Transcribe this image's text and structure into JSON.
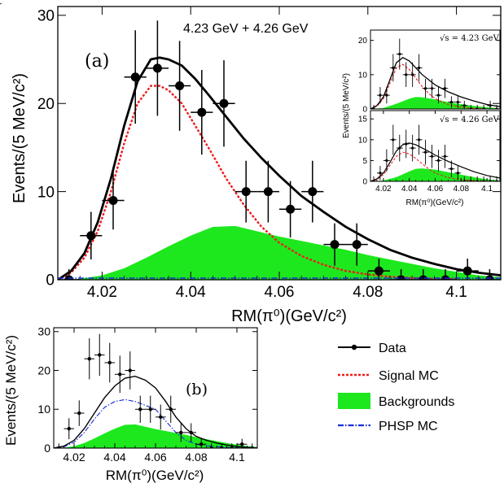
{
  "chart_data": [
    {
      "type": "scatter",
      "panel_label": "(a)",
      "annotation": "4.23 GeV + 4.26 GeV",
      "xlabel": "RM(π⁰)(GeV/c²)",
      "ylabel": "Events/(5 MeV/c²)",
      "xlim": [
        4.01,
        4.11
      ],
      "ylim": [
        0,
        31
      ],
      "xticks": [
        "4.02",
        "4.04",
        "4.06",
        "4.08",
        "4.1"
      ],
      "yticks": [
        "0",
        "10",
        "20",
        "30"
      ],
      "data": {
        "x": [
          4.0125,
          4.0175,
          4.0225,
          4.0275,
          4.0325,
          4.0375,
          4.0425,
          4.0475,
          4.0525,
          4.0575,
          4.0625,
          4.0675,
          4.0725,
          4.0775,
          4.0825,
          4.0875,
          4.0925,
          4.0975,
          4.1025,
          4.1075
        ],
        "y": [
          0,
          5,
          9,
          23,
          24,
          22,
          19,
          20,
          10,
          10,
          8,
          10,
          4,
          4,
          1,
          0,
          0,
          0,
          1,
          0
        ],
        "yerr": [
          1.2,
          2.7,
          3.3,
          5.3,
          5.4,
          5.1,
          4.8,
          4.9,
          3.5,
          3.5,
          3.2,
          3.5,
          2.4,
          2.4,
          1.4,
          1.2,
          1.2,
          1.2,
          1.4,
          1.2
        ]
      },
      "total_fit": {
        "x": [
          4.01,
          4.013,
          4.016,
          4.019,
          4.022,
          4.025,
          4.028,
          4.031,
          4.033,
          4.035,
          4.038,
          4.041,
          4.044,
          4.048,
          4.052,
          4.056,
          4.06,
          4.065,
          4.07,
          4.075,
          4.08,
          4.085,
          4.09,
          4.095,
          4.1,
          4.105,
          4.11
        ],
        "y": [
          0,
          1.0,
          3.0,
          6.5,
          11.5,
          17.5,
          22.5,
          25.0,
          25.2,
          25.0,
          24.3,
          22.8,
          21.0,
          18.5,
          16.0,
          13.8,
          11.8,
          9.5,
          7.7,
          6.0,
          4.6,
          3.4,
          2.5,
          1.8,
          1.2,
          0.8,
          0.5
        ]
      },
      "signal_mc": {
        "x": [
          4.01,
          4.013,
          4.016,
          4.019,
          4.022,
          4.025,
          4.028,
          4.031,
          4.033,
          4.035,
          4.038,
          4.041,
          4.044,
          4.048,
          4.052,
          4.056,
          4.06,
          4.065,
          4.07,
          4.075,
          4.08,
          4.085,
          4.09,
          4.095,
          4.1
        ],
        "y": [
          0,
          0.8,
          2.5,
          5.5,
          10.0,
          15.5,
          20.0,
          22.0,
          22.0,
          21.5,
          20.0,
          17.5,
          15.0,
          11.5,
          8.5,
          6.0,
          4.2,
          2.7,
          1.7,
          1.0,
          0.6,
          0.35,
          0.2,
          0.1,
          0.05
        ]
      },
      "backgrounds": {
        "x": [
          4.01,
          4.015,
          4.02,
          4.025,
          4.03,
          4.035,
          4.04,
          4.045,
          4.05,
          4.055,
          4.06,
          4.065,
          4.07,
          4.075,
          4.08,
          4.085,
          4.09,
          4.095,
          4.1,
          4.105,
          4.11
        ],
        "y": [
          0,
          0.1,
          0.5,
          1.3,
          2.5,
          3.8,
          5.0,
          6.0,
          6.1,
          5.5,
          4.9,
          4.4,
          3.9,
          3.4,
          2.8,
          2.3,
          1.8,
          1.3,
          0.9,
          0.5,
          0.3
        ]
      }
    },
    {
      "type": "scatter",
      "panel_label": "(b)",
      "xlabel": "RM(π⁰)(GeV/c²)",
      "ylabel": "Events/(5 MeV/c²)",
      "xlim": [
        4.01,
        4.11
      ],
      "ylim": [
        0,
        31
      ],
      "xticks": [
        "4.02",
        "4.04",
        "4.06",
        "4.08",
        "4.1"
      ],
      "yticks": [
        "0",
        "10",
        "20",
        "30"
      ],
      "data": {
        "x": [
          4.0125,
          4.0175,
          4.0225,
          4.0275,
          4.0325,
          4.0375,
          4.0425,
          4.0475,
          4.0525,
          4.0575,
          4.0625,
          4.0675,
          4.0725,
          4.0775,
          4.0825,
          4.0875,
          4.0925,
          4.0975,
          4.1025,
          4.1075
        ],
        "y": [
          0,
          5,
          9,
          23,
          24,
          22,
          19,
          20,
          10,
          10,
          8,
          10,
          4,
          4,
          1,
          0,
          0,
          0,
          1,
          0
        ],
        "yerr": [
          1.2,
          2.7,
          3.3,
          5.3,
          5.4,
          5.1,
          4.8,
          4.9,
          3.5,
          3.5,
          3.2,
          3.5,
          2.4,
          2.4,
          1.4,
          1.2,
          1.2,
          1.2,
          1.4,
          1.2
        ]
      },
      "total_fit": {
        "x": [
          4.01,
          4.015,
          4.02,
          4.025,
          4.03,
          4.035,
          4.04,
          4.045,
          4.05,
          4.055,
          4.06,
          4.065,
          4.07,
          4.075,
          4.08,
          4.085,
          4.09,
          4.095,
          4.1,
          4.105,
          4.11
        ],
        "y": [
          0,
          0.5,
          2.0,
          5.0,
          9.0,
          13.0,
          16.0,
          18.0,
          18.5,
          17.5,
          15.5,
          12.0,
          8.0,
          5.0,
          3.0,
          2.0,
          1.3,
          0.8,
          0.4,
          0.2,
          0
        ]
      },
      "phsp_mc": {
        "x": [
          4.01,
          4.015,
          4.02,
          4.025,
          4.03,
          4.035,
          4.04,
          4.045,
          4.05,
          4.055,
          4.06,
          4.065,
          4.07,
          4.075,
          4.08,
          4.085,
          4.09,
          4.095,
          4.1,
          4.105,
          4.11
        ],
        "y": [
          0,
          0.3,
          1.5,
          4.0,
          7.5,
          10.5,
          12.0,
          12.5,
          12.0,
          11.0,
          10.0,
          7.0,
          4.0,
          2.0,
          1.0,
          0.6,
          0.4,
          0.2,
          0.1,
          0,
          0
        ]
      },
      "backgrounds": {
        "x": [
          4.01,
          4.015,
          4.02,
          4.025,
          4.03,
          4.035,
          4.04,
          4.045,
          4.05,
          4.055,
          4.06,
          4.065,
          4.07,
          4.075,
          4.08,
          4.085,
          4.09,
          4.095,
          4.1,
          4.105,
          4.11
        ],
        "y": [
          0,
          0.1,
          0.5,
          1.3,
          2.5,
          3.8,
          5.0,
          6.0,
          6.1,
          5.5,
          4.9,
          4.4,
          3.9,
          3.4,
          2.8,
          2.3,
          1.8,
          1.3,
          0.9,
          0.5,
          0.3
        ]
      }
    },
    {
      "type": "scatter",
      "panel_label": "√s = 4.23 GeV",
      "ylabel": "Events/(5 MeV/c²)",
      "xlim": [
        4.01,
        4.11
      ],
      "ylim": [
        0,
        23
      ],
      "yticks": [
        "0",
        "10",
        "20"
      ],
      "data": {
        "x": [
          4.0125,
          4.0175,
          4.0225,
          4.0275,
          4.0325,
          4.0375,
          4.0425,
          4.0475,
          4.0525,
          4.0575,
          4.0625,
          4.0675,
          4.0725,
          4.0775,
          4.0825,
          4.0875,
          4.0925,
          4.0975,
          4.1025,
          4.1075
        ],
        "y": [
          0,
          4,
          4,
          12,
          16,
          10,
          10,
          12,
          6,
          6,
          4,
          6,
          2,
          2,
          1,
          0,
          0,
          0,
          1,
          0
        ],
        "yerr": [
          1.2,
          2.4,
          2.4,
          4.0,
          4.5,
          3.6,
          3.6,
          4.0,
          2.8,
          2.8,
          2.4,
          2.8,
          1.7,
          1.7,
          1.4,
          1.2,
          1.2,
          1.2,
          1.4,
          1.2
        ]
      },
      "total_fit": {
        "x": [
          4.01,
          4.015,
          4.02,
          4.025,
          4.03,
          4.035,
          4.04,
          4.045,
          4.05,
          4.055,
          4.06,
          4.07,
          4.08,
          4.09,
          4.1,
          4.11
        ],
        "y": [
          0,
          1.0,
          3.5,
          8.5,
          13.5,
          15.0,
          14.0,
          12.0,
          10.0,
          8.5,
          7.0,
          5.0,
          3.5,
          2.3,
          1.3,
          0.7
        ]
      },
      "signal_mc": {
        "x": [
          4.01,
          4.015,
          4.02,
          4.025,
          4.03,
          4.035,
          4.04,
          4.045,
          4.05,
          4.055,
          4.06,
          4.07,
          4.08,
          4.09,
          4.1
        ],
        "y": [
          0,
          0.8,
          3.0,
          7.5,
          12.0,
          13.0,
          11.5,
          9.0,
          6.5,
          4.5,
          3.0,
          1.3,
          0.5,
          0.2,
          0.1
        ]
      },
      "backgrounds": {
        "x": [
          4.01,
          4.02,
          4.03,
          4.04,
          4.045,
          4.05,
          4.06,
          4.07,
          4.08,
          4.09,
          4.1,
          4.11
        ],
        "y": [
          0,
          0.3,
          1.5,
          3.0,
          3.5,
          3.4,
          2.8,
          2.0,
          1.4,
          0.9,
          0.5,
          0.2
        ]
      }
    },
    {
      "type": "scatter",
      "panel_label": "√s = 4.26 GeV",
      "xlabel": "RM(π⁰)(GeV/c²)",
      "ylabel": "Events/(5 MeV/c²)",
      "xlim": [
        4.01,
        4.11
      ],
      "ylim": [
        0,
        17
      ],
      "xticks": [
        "4.02",
        "4.04",
        "4.06",
        "4.08",
        "4.1"
      ],
      "yticks": [
        "0",
        "5",
        "10",
        "15"
      ],
      "data": {
        "x": [
          4.0125,
          4.0175,
          4.0225,
          4.0275,
          4.0325,
          4.0375,
          4.0425,
          4.0475,
          4.0525,
          4.0575,
          4.0625,
          4.0675,
          4.0725,
          4.0775,
          4.0825,
          4.0875,
          4.0925,
          4.0975,
          4.1025,
          4.1075
        ],
        "y": [
          0,
          2,
          5,
          10,
          8,
          9,
          8,
          10,
          7,
          6,
          5,
          6,
          3,
          2,
          0,
          0,
          0,
          0,
          0,
          0
        ],
        "yerr": [
          1.2,
          1.7,
          2.7,
          3.6,
          3.2,
          3.4,
          3.2,
          3.6,
          3.0,
          2.8,
          2.6,
          2.8,
          2.0,
          1.7,
          1.2,
          1.2,
          1.2,
          1.2,
          1.2,
          1.2
        ]
      },
      "total_fit": {
        "x": [
          4.01,
          4.015,
          4.02,
          4.025,
          4.03,
          4.035,
          4.04,
          4.045,
          4.05,
          4.055,
          4.06,
          4.07,
          4.08,
          4.09,
          4.1,
          4.11
        ],
        "y": [
          0,
          0.6,
          2.0,
          4.5,
          7.3,
          8.8,
          9.2,
          8.8,
          8.0,
          7.2,
          6.3,
          4.8,
          3.5,
          2.3,
          1.4,
          0.8
        ]
      },
      "signal_mc": {
        "x": [
          4.01,
          4.015,
          4.02,
          4.025,
          4.03,
          4.035,
          4.04,
          4.045,
          4.05,
          4.055,
          4.06,
          4.07,
          4.08,
          4.09,
          4.1
        ],
        "y": [
          0,
          0.4,
          1.6,
          3.8,
          6.0,
          7.0,
          6.6,
          5.5,
          4.2,
          3.0,
          2.0,
          0.9,
          0.4,
          0.15,
          0.05
        ]
      },
      "backgrounds": {
        "x": [
          4.01,
          4.02,
          4.03,
          4.04,
          4.045,
          4.05,
          4.06,
          4.07,
          4.08,
          4.09,
          4.1,
          4.11
        ],
        "y": [
          0,
          0.2,
          1.0,
          2.4,
          3.0,
          3.1,
          2.8,
          2.2,
          1.6,
          1.0,
          0.5,
          0.2
        ]
      }
    }
  ],
  "legend": {
    "data": "Data",
    "signal": "Signal MC",
    "backgrounds": "Backgrounds",
    "phsp": "PHSP MC"
  },
  "colors": {
    "fit": "#000000",
    "signal": "#ee1c1c",
    "backgrounds": "#1de81d",
    "phsp": "#1a2fd6",
    "data": "#000000"
  }
}
